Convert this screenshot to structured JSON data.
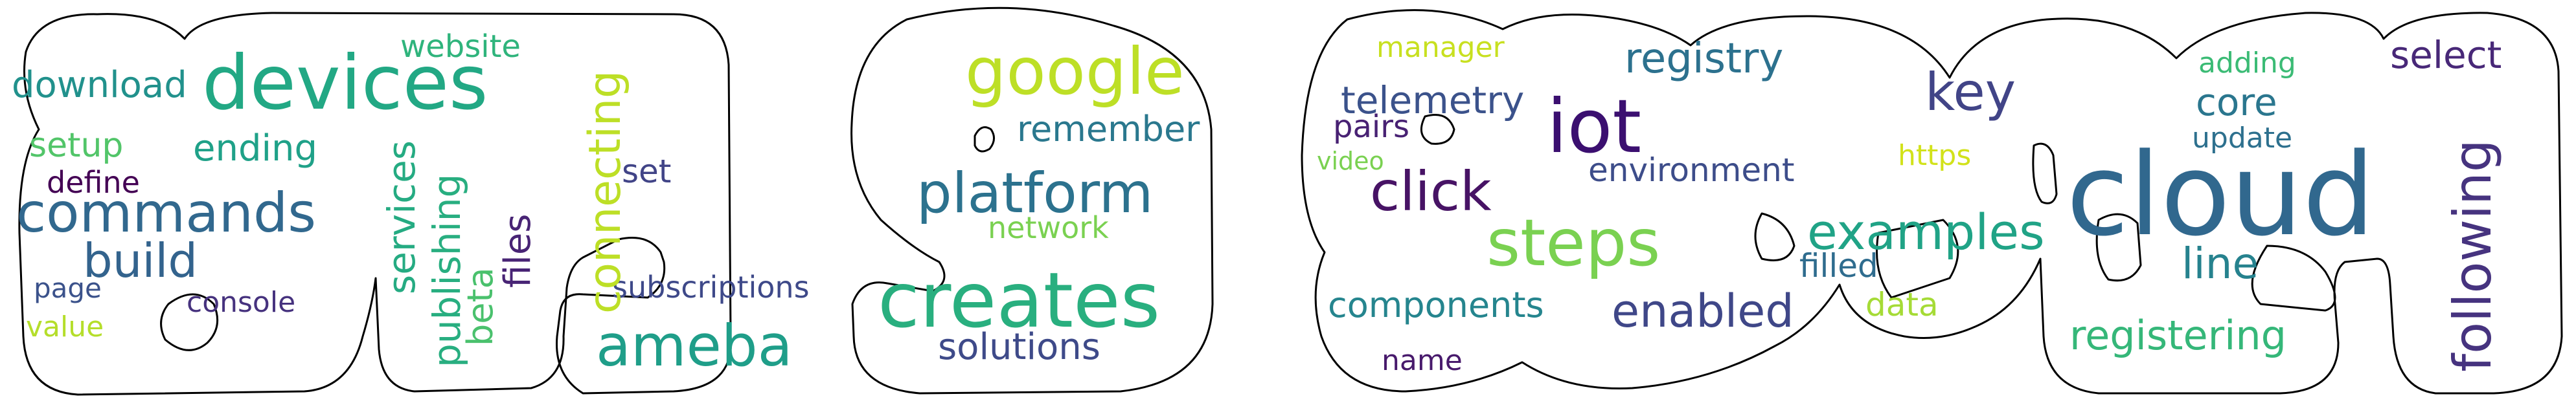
{
  "words": [
    {
      "text": "devices",
      "color": "#22a884"
    },
    {
      "text": "google",
      "color": "#bddf26"
    },
    {
      "text": "platform",
      "color": "#2c728e"
    },
    {
      "text": "creates",
      "color": "#29af7f"
    },
    {
      "text": "ameba",
      "color": "#1f9e89"
    },
    {
      "text": "commands",
      "color": "#31688e"
    },
    {
      "text": "build",
      "color": "#33638d"
    },
    {
      "text": "download",
      "color": "#21918c"
    },
    {
      "text": "website",
      "color": "#2fb47c"
    },
    {
      "text": "connecting",
      "color": "#bddf26"
    },
    {
      "text": "services",
      "color": "#25ab82"
    },
    {
      "text": "publishing",
      "color": "#28ae80"
    },
    {
      "text": "beta",
      "color": "#4ac16d"
    },
    {
      "text": "files",
      "color": "#482475"
    },
    {
      "text": "setup",
      "color": "#52c569"
    },
    {
      "text": "ending",
      "color": "#1fa188"
    },
    {
      "text": "define",
      "color": "#440154"
    },
    {
      "text": "page",
      "color": "#3b528b"
    },
    {
      "text": "console",
      "color": "#46327e"
    },
    {
      "text": "value",
      "color": "#b5de2b"
    },
    {
      "text": "set",
      "color": "#414487"
    },
    {
      "text": "subscriptions",
      "color": "#3e4989"
    },
    {
      "text": "remember",
      "color": "#2a788e"
    },
    {
      "text": "network",
      "color": "#7ad151"
    },
    {
      "text": "solutions",
      "color": "#3e4a89"
    },
    {
      "text": "cloud",
      "color": "#31688e"
    },
    {
      "text": "iot",
      "color": "#3b0f70"
    },
    {
      "text": "steps",
      "color": "#7ad151"
    },
    {
      "text": "examples",
      "color": "#20a386"
    },
    {
      "text": "click",
      "color": "#471365"
    },
    {
      "text": "key",
      "color": "#414487"
    },
    {
      "text": "following",
      "color": "#46337f"
    },
    {
      "text": "registry",
      "color": "#2c718e"
    },
    {
      "text": "enabled",
      "color": "#3f4788"
    },
    {
      "text": "registering",
      "color": "#35b779"
    },
    {
      "text": "telemetry",
      "color": "#3b528b"
    },
    {
      "text": "environment",
      "color": "#3d4d8a"
    },
    {
      "text": "components",
      "color": "#25858e"
    },
    {
      "text": "line",
      "color": "#26828e"
    },
    {
      "text": "select",
      "color": "#482878"
    },
    {
      "text": "core",
      "color": "#2a768e"
    },
    {
      "text": "update",
      "color": "#2d708e"
    },
    {
      "text": "adding",
      "color": "#3bbb75"
    },
    {
      "text": "filled",
      "color": "#2f6c8e"
    },
    {
      "text": "data",
      "color": "#a5db36"
    },
    {
      "text": "manager",
      "color": "#c8e020"
    },
    {
      "text": "pairs",
      "color": "#482173"
    },
    {
      "text": "video",
      "color": "#7ad151"
    },
    {
      "text": "https",
      "color": "#d2e21b"
    },
    {
      "text": "name",
      "color": "#481a6c"
    }
  ]
}
